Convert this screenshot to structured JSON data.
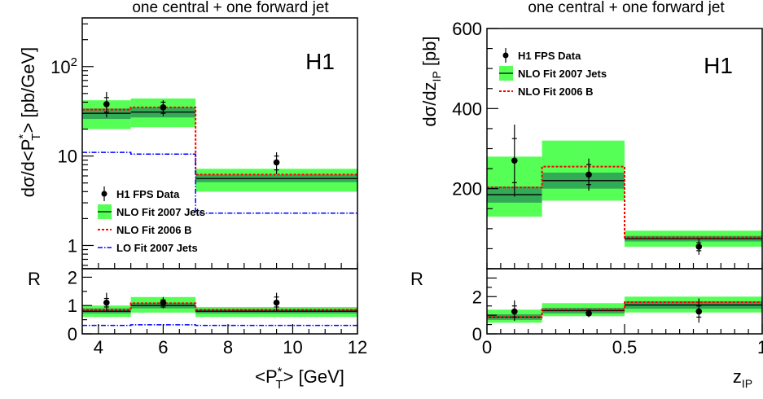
{
  "colors": {
    "band_outer": "#55ff55",
    "band_inner": "#33aa55",
    "nlo_line": "#000000",
    "nlo2006": "#ff0000",
    "lo": "#0000ff",
    "data": "#000000"
  },
  "chart_data": [
    {
      "type": "bar",
      "title": "one central + one forward jet",
      "label": "H1",
      "xlabel": "<P*T> [GeV]",
      "xlabel_parts": {
        "main": "<P",
        "sup": "*",
        "sub": "T",
        "end": "> [GeV]"
      },
      "ylabel": "dσ/d<P*T> [pb/GeV]",
      "ylabel_parts": {
        "main": "dσ/d<P",
        "sup": "*",
        "sub": "T",
        "end": "> [pb/GeV]"
      },
      "xlim": [
        3.5,
        12
      ],
      "ylim": [
        0.55,
        350
      ],
      "log_y": true,
      "x_ticks": [
        "4",
        "6",
        "8",
        "10",
        "12"
      ],
      "y_tick_labels": [
        "1",
        "10",
        "10²"
      ],
      "ratio_label": "R",
      "ratio_ylim": [
        0,
        2.3
      ],
      "ratio_ticks": [
        "0",
        "1",
        "2"
      ],
      "legend": {
        "position": "bottom-left",
        "entries": [
          "H1 FPS Data",
          "NLO Fit 2007 Jets",
          "NLO Fit 2006 B",
          "LO Fit 2007 Jets"
        ]
      },
      "bins": [
        [
          3.5,
          5
        ],
        [
          5,
          7
        ],
        [
          7,
          12
        ]
      ],
      "series": [
        {
          "name": "H1 FPS Data",
          "x": [
            4.25,
            6.0,
            9.5
          ],
          "values": [
            38,
            35,
            8.5
          ],
          "stat_err": [
            [
              31,
              45
            ],
            [
              30,
              40
            ],
            [
              7,
              10
            ]
          ],
          "total_err": [
            [
              27,
              52
            ],
            [
              28,
              42
            ],
            [
              6.3,
              11
            ]
          ]
        },
        {
          "name": "NLO Fit 2007 Jets",
          "values": [
            30,
            31,
            5.6
          ],
          "inner_band": [
            [
              26,
              34
            ],
            [
              27,
              35
            ],
            [
              5.1,
              6.2
            ]
          ],
          "outer_band": [
            [
              20,
              42
            ],
            [
              21,
              44
            ],
            [
              4.0,
              7.2
            ]
          ]
        },
        {
          "name": "NLO Fit 2006 B",
          "values": [
            33,
            35,
            6.2
          ]
        },
        {
          "name": "LO Fit 2007 Jets",
          "values": [
            11,
            10.5,
            2.3
          ]
        }
      ],
      "ratio": {
        "data": [
          1.1,
          1.1,
          1.1
        ],
        "data_stat": [
          [
            0.95,
            1.25
          ],
          [
            0.95,
            1.2
          ],
          [
            0.95,
            1.3
          ]
        ],
        "data_total": [
          [
            0.8,
            1.45
          ],
          [
            0.9,
            1.3
          ],
          [
            0.8,
            1.45
          ]
        ],
        "nlo": [
          0.8,
          1.0,
          0.8
        ],
        "inner_band": [
          [
            0.72,
            0.9
          ],
          [
            0.9,
            1.1
          ],
          [
            0.72,
            0.88
          ]
        ],
        "outer_band": [
          [
            0.6,
            1.0
          ],
          [
            0.75,
            1.3
          ],
          [
            0.6,
            0.95
          ]
        ],
        "nlo2006": [
          0.85,
          1.08,
          0.85
        ],
        "lo": [
          0.3,
          0.32,
          0.3
        ]
      }
    },
    {
      "type": "bar",
      "title": "one central + one forward jet",
      "label": "H1",
      "xlabel": "zIP",
      "xlabel_parts": {
        "main": "z",
        "sub": "IP"
      },
      "ylabel": "dσ/dzIP [pb]",
      "ylabel_parts": {
        "main": "dσ/dz",
        "sub": "IP",
        "end": " [pb]"
      },
      "xlim": [
        0,
        1
      ],
      "ylim": [
        0,
        600
      ],
      "log_y": false,
      "x_ticks": [
        "0",
        "0.5",
        "1"
      ],
      "y_tick_labels": [
        "200",
        "400",
        "600"
      ],
      "ratio_label": "R",
      "ratio_ylim": [
        0,
        3.5
      ],
      "ratio_ticks": [
        "0",
        "2"
      ],
      "legend": {
        "position": "top-left",
        "entries": [
          "H1 FPS Data",
          "NLO Fit 2007 Jets",
          "NLO Fit 2006 B"
        ]
      },
      "bins": [
        [
          0,
          0.2
        ],
        [
          0.2,
          0.5
        ],
        [
          0.5,
          1.0
        ]
      ],
      "series": [
        {
          "name": "H1 FPS Data",
          "x": [
            0.1,
            0.37,
            0.77
          ],
          "values": [
            270,
            235,
            55
          ],
          "stat_err": [
            [
              215,
              325
            ],
            [
              210,
              260
            ],
            [
              45,
              65
            ]
          ],
          "total_err": [
            [
              180,
              360
            ],
            [
              195,
              275
            ],
            [
              35,
              75
            ]
          ]
        },
        {
          "name": "NLO Fit 2007 Jets",
          "values": [
            185,
            220,
            75
          ],
          "inner_band": [
            [
              165,
              205
            ],
            [
              200,
              240
            ],
            [
              68,
              82
            ]
          ],
          "outer_band": [
            [
              130,
              280
            ],
            [
              170,
              320
            ],
            [
              55,
              95
            ]
          ]
        },
        {
          "name": "NLO Fit 2006 B",
          "values": [
            203,
            255,
            78
          ]
        }
      ],
      "ratio": {
        "data": [
          1.2,
          1.1,
          1.2
        ],
        "data_stat": [
          [
            0.9,
            1.5
          ],
          [
            1.0,
            1.25
          ],
          [
            0.9,
            1.5
          ]
        ],
        "data_total": [
          [
            0.7,
            1.8
          ],
          [
            0.9,
            1.35
          ],
          [
            0.6,
            1.9
          ]
        ],
        "nlo": [
          0.9,
          1.25,
          1.55
        ],
        "inner_band": [
          [
            0.75,
            1.05
          ],
          [
            1.1,
            1.4
          ],
          [
            1.35,
            1.75
          ]
        ],
        "outer_band": [
          [
            0.6,
            1.3
          ],
          [
            0.95,
            1.65
          ],
          [
            1.15,
            2.0
          ]
        ],
        "nlo2006": [
          0.9,
          1.3,
          1.7
        ]
      }
    }
  ]
}
